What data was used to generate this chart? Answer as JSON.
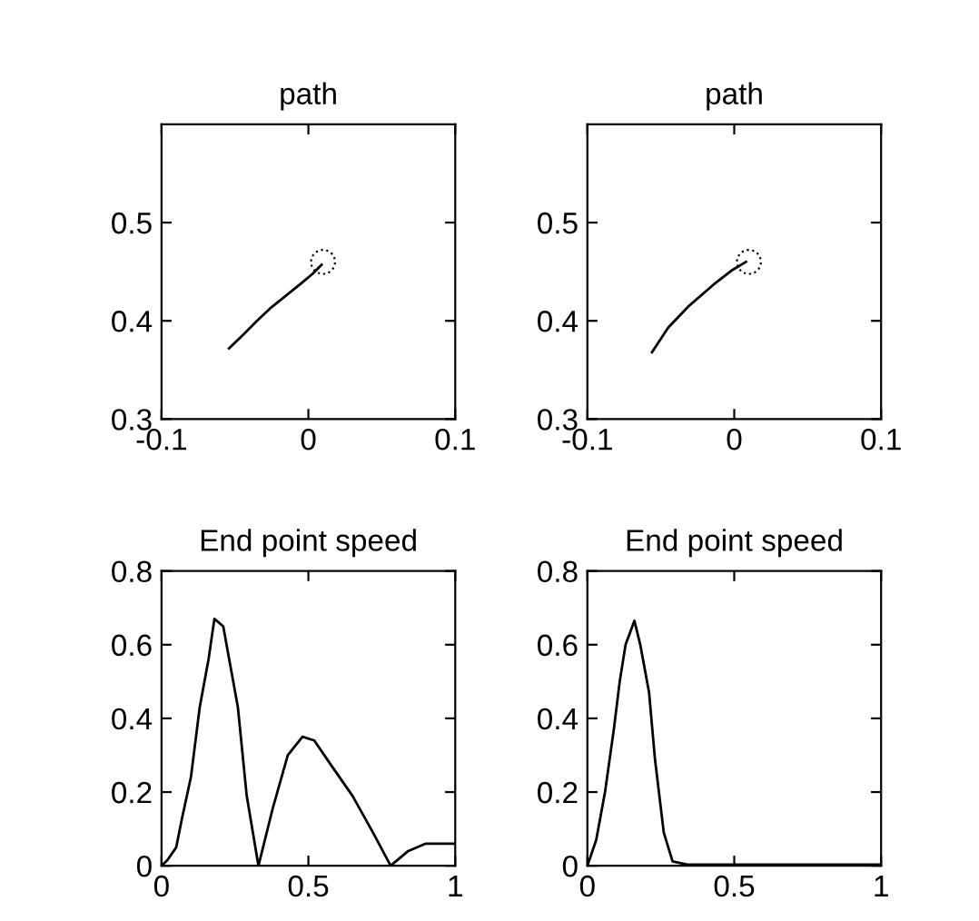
{
  "chart_data": [
    {
      "type": "line",
      "title": "path",
      "xlim": [
        -0.1,
        0.1
      ],
      "ylim": [
        0.3,
        0.6
      ],
      "xticks": [
        -0.1,
        0,
        0.1
      ],
      "yticks": [
        0.3,
        0.4,
        0.5
      ],
      "grid": false,
      "legend": false,
      "series": [
        {
          "color": "#000000",
          "x": [
            -0.054,
            -0.045,
            -0.035,
            -0.025,
            -0.015,
            -0.005,
            0.003,
            0.009
          ],
          "values": [
            0.372,
            0.385,
            0.4,
            0.414,
            0.426,
            0.438,
            0.448,
            0.457
          ]
        },
        {
          "type": "scatter",
          "marker": "circle",
          "line_style": "dotted",
          "color": "#000000",
          "x": [
            0.01
          ],
          "values": [
            0.46
          ]
        }
      ]
    },
    {
      "type": "line",
      "title": "path",
      "xlim": [
        -0.1,
        0.1
      ],
      "ylim": [
        0.3,
        0.6
      ],
      "xticks": [
        -0.1,
        0,
        0.1
      ],
      "yticks": [
        0.3,
        0.4,
        0.5
      ],
      "grid": false,
      "legend": false,
      "series": [
        {
          "color": "#000000",
          "x": [
            -0.056,
            -0.045,
            -0.031,
            -0.014,
            -0.002,
            0.008
          ],
          "values": [
            0.368,
            0.393,
            0.415,
            0.437,
            0.451,
            0.46
          ]
        },
        {
          "type": "scatter",
          "marker": "circle",
          "line_style": "dotted",
          "color": "#000000",
          "x": [
            0.01
          ],
          "values": [
            0.46
          ]
        }
      ]
    },
    {
      "type": "line",
      "title": "End point speed",
      "xlim": [
        0,
        1
      ],
      "ylim": [
        0,
        0.8
      ],
      "xticks": [
        0,
        0.5,
        1
      ],
      "yticks": [
        0,
        0.2,
        0.4,
        0.6,
        0.8
      ],
      "grid": false,
      "legend": false,
      "series": [
        {
          "color": "#000000",
          "x": [
            0,
            0.02,
            0.05,
            0.07,
            0.1,
            0.13,
            0.16,
            0.18,
            0.21,
            0.26,
            0.29,
            0.33,
            0.38,
            0.43,
            0.48,
            0.52,
            0.58,
            0.65,
            0.72,
            0.78,
            0.84,
            0.9,
            1
          ],
          "values": [
            0,
            0.015,
            0.05,
            0.13,
            0.24,
            0.43,
            0.56,
            0.67,
            0.65,
            0.43,
            0.19,
            0,
            0.16,
            0.3,
            0.35,
            0.34,
            0.27,
            0.19,
            0.09,
            0,
            0.04,
            0.06,
            0.06
          ]
        }
      ]
    },
    {
      "type": "line",
      "title": "End point speed",
      "xlim": [
        0,
        1
      ],
      "ylim": [
        0,
        0.8
      ],
      "xticks": [
        0,
        0.5,
        1
      ],
      "yticks": [
        0,
        0.2,
        0.4,
        0.6,
        0.8
      ],
      "grid": false,
      "legend": false,
      "series": [
        {
          "color": "#000000",
          "x": [
            0,
            0.03,
            0.06,
            0.09,
            0.11,
            0.13,
            0.16,
            0.18,
            0.21,
            0.23,
            0.26,
            0.29,
            0.34,
            1
          ],
          "values": [
            0,
            0.07,
            0.2,
            0.37,
            0.5,
            0.6,
            0.665,
            0.6,
            0.47,
            0.29,
            0.09,
            0.012,
            0.003,
            0.003
          ]
        }
      ]
    }
  ]
}
